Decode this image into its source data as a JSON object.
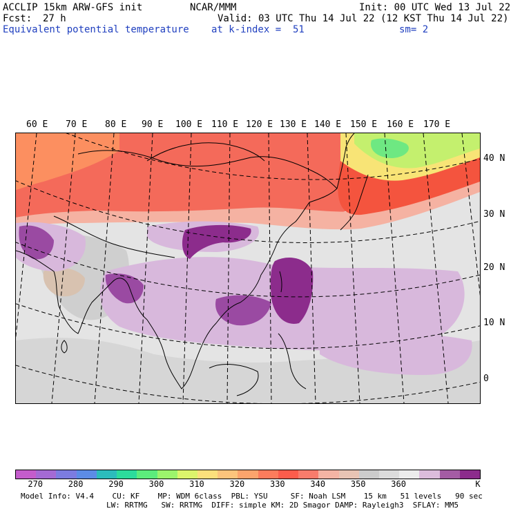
{
  "header": {
    "model": "ACCLIP 15km ARW-GFS init",
    "org": "NCAR/MMM",
    "init": "Init: 00 UTC Wed 13 Jul 22",
    "fcst_label": "Fcst:",
    "fcst_value": "27 h",
    "valid": "Valid: 03 UTC Thu 14 Jul 22 (12 KST Thu 14 Jul 22)",
    "field": "Equivalent potential temperature",
    "level": "at k-index =  51",
    "smoothing": "sm= 2"
  },
  "map": {
    "lon_labels": [
      "60 E",
      "70 E",
      "80 E",
      "90 E",
      "100 E",
      "110 E",
      "120 E",
      "130 E",
      "140 E",
      "150 E",
      "160 E",
      "170 E"
    ],
    "lat_labels": [
      "40 N",
      "30 N",
      "20 N",
      "10 N",
      "0"
    ]
  },
  "colorbar": {
    "colors": [
      "#c45ccc",
      "#a46ad4",
      "#7c7ce0",
      "#5c8ce6",
      "#2cbcbc",
      "#2cdc9c",
      "#5cec7c",
      "#9cf46c",
      "#dcf46c",
      "#fce07c",
      "#fcc47c",
      "#fca46c",
      "#fc7c5c",
      "#fc5c4c",
      "#f87c6c",
      "#f4b4a4",
      "#e8c4b4",
      "#cccccc",
      "#dcdcdc",
      "#ececec",
      "#dcbcdc",
      "#a45ca4",
      "#8c2c8c"
    ],
    "labels": [
      "270",
      "280",
      "290",
      "300",
      "310",
      "320",
      "330",
      "340",
      "350",
      "360"
    ],
    "unit": "K"
  },
  "footer": {
    "line1": "Model Info: V4.4    CU: KF    MP: WDM 6class  PBL: YSU     SF: Noah LSM    15 km   51 levels   90 sec",
    "line2": "LW: RRTMG   SW: RRTMG  DIFF: simple KM: 2D Smagor DAMP: Rayleigh3  SFLAY: MM5"
  }
}
